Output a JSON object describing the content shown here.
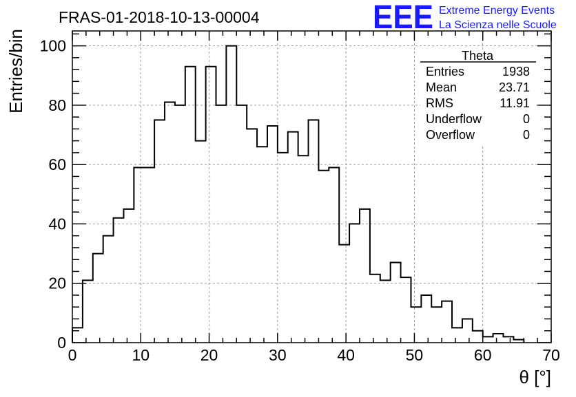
{
  "chart_data": {
    "type": "histogram",
    "title": "FRAS-01-2018-10-13-00004",
    "xlabel": "θ [°]",
    "ylabel": "Entries/bin",
    "xlim": [
      0,
      70
    ],
    "ylim": [
      0,
      105
    ],
    "x_ticks": [
      0,
      10,
      20,
      30,
      40,
      50,
      60,
      70
    ],
    "y_ticks": [
      0,
      20,
      40,
      60,
      80,
      100
    ],
    "grid": true,
    "bin_width": 1.5,
    "bin_start": 0,
    "values": [
      5,
      21,
      30,
      36,
      42,
      45,
      59,
      59,
      75,
      81,
      80,
      93,
      68,
      93,
      80,
      100,
      80,
      72,
      66,
      73,
      64,
      71,
      63,
      75,
      58,
      59,
      33,
      40,
      45,
      23,
      21,
      27,
      22,
      12,
      16,
      12,
      14,
      5,
      8,
      4,
      2,
      3,
      2,
      1,
      0,
      0,
      0
    ],
    "line_color": "#000000"
  },
  "stats_box": {
    "title": "Theta",
    "rows": [
      {
        "label": "Entries",
        "value": "1938"
      },
      {
        "label": "Mean",
        "value": "23.71"
      },
      {
        "label": "RMS",
        "value": "11.91"
      },
      {
        "label": "Underflow",
        "value": "0"
      },
      {
        "label": "Overflow",
        "value": "0"
      }
    ]
  },
  "logo": {
    "mark": "EEE",
    "line1": "Extreme Energy Events",
    "line2": "La Scienza nelle Scuole",
    "color": "#1a1aff"
  }
}
